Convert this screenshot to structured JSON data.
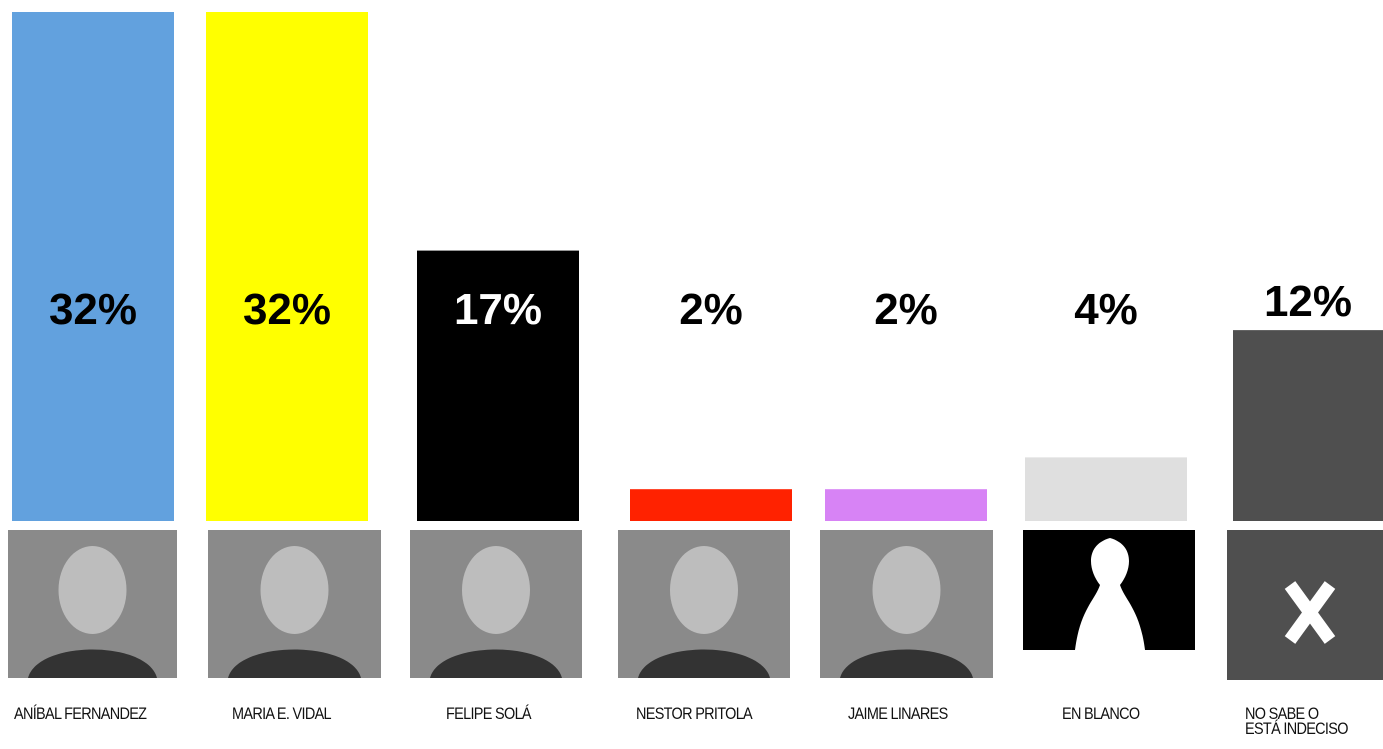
{
  "chart_data": {
    "type": "bar",
    "categories": [
      "ANÍBAL FERNANDEZ",
      "MARIA E. VIDAL",
      "FELIPE SOLÁ",
      "NESTOR PRITOLA",
      "JAIME LINARES",
      "EN BLANCO",
      "NO SABE O\nESTÁ INDECISO"
    ],
    "values": [
      32,
      32,
      17,
      2,
      2,
      4,
      12
    ],
    "value_labels": [
      "32%",
      "32%",
      "17%",
      "2%",
      "2%",
      "4%",
      "12%"
    ],
    "colors": [
      "#62a1de",
      "#ffff00",
      "#000000",
      "#ff2200",
      "#d783f5",
      "#dfdfdf",
      "#4f4f4f"
    ],
    "ylim": [
      0,
      32
    ]
  }
}
